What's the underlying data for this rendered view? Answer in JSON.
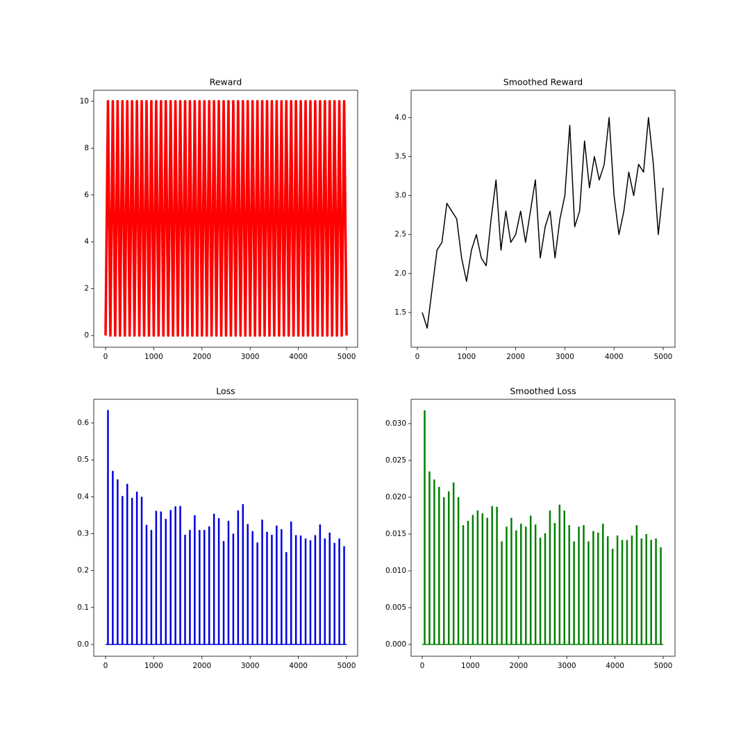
{
  "chart_data": [
    {
      "type": "line",
      "title": "Reward",
      "color": "#ff0000",
      "x": [
        0,
        50,
        100,
        150,
        200,
        250,
        300,
        350,
        400,
        450,
        500,
        550,
        600,
        650,
        700,
        750,
        800,
        850,
        900,
        950,
        1000,
        1050,
        1100,
        1150,
        1200,
        1250,
        1300,
        1350,
        1400,
        1450,
        1500,
        1550,
        1600,
        1650,
        1700,
        1750,
        1800,
        1850,
        1900,
        1950,
        2000,
        2050,
        2100,
        2150,
        2200,
        2250,
        2300,
        2350,
        2400,
        2450,
        2500,
        2550,
        2600,
        2650,
        2700,
        2750,
        2800,
        2850,
        2900,
        2950,
        3000,
        3050,
        3100,
        3150,
        3200,
        3250,
        3300,
        3350,
        3400,
        3450,
        3500,
        3550,
        3600,
        3650,
        3700,
        3750,
        3800,
        3850,
        3900,
        3950,
        4000,
        4050,
        4100,
        4150,
        4200,
        4250,
        4300,
        4350,
        4400,
        4450,
        4500,
        4550,
        4600,
        4650,
        4700,
        4750,
        4800,
        4850,
        4900,
        4950,
        5000
      ],
      "values": [
        0,
        10,
        0,
        10,
        0,
        10,
        0,
        10,
        0,
        10,
        0,
        10,
        0,
        10,
        0,
        10,
        0,
        10,
        0,
        10,
        0,
        10,
        0,
        10,
        0,
        10,
        0,
        10,
        0,
        10,
        0,
        10,
        0,
        10,
        0,
        10,
        0,
        10,
        0,
        10,
        0,
        10,
        0,
        10,
        0,
        10,
        0,
        10,
        0,
        10,
        0,
        10,
        0,
        10,
        0,
        10,
        0,
        10,
        0,
        10,
        0,
        10,
        0,
        10,
        0,
        10,
        0,
        10,
        0,
        10,
        0,
        10,
        0,
        10,
        0,
        10,
        0,
        10,
        0,
        10,
        0,
        10,
        0,
        10,
        0,
        10,
        0,
        10,
        0,
        10,
        0,
        10,
        0,
        10,
        0,
        10,
        0,
        10,
        0,
        10,
        0
      ],
      "xlim": [
        -245,
        5230
      ],
      "ylim": [
        -0.5,
        10.47
      ],
      "xticks": [
        0,
        1000,
        2000,
        3000,
        4000,
        5000
      ],
      "yticks": [
        0,
        2,
        4,
        6,
        8,
        10
      ]
    },
    {
      "type": "line",
      "title": "Smoothed Reward",
      "color": "#000000",
      "x": [
        100,
        200,
        300,
        400,
        500,
        600,
        700,
        800,
        900,
        1000,
        1100,
        1200,
        1300,
        1400,
        1500,
        1600,
        1700,
        1800,
        1900,
        2000,
        2100,
        2200,
        2300,
        2400,
        2500,
        2600,
        2700,
        2800,
        2900,
        3000,
        3100,
        3200,
        3300,
        3400,
        3500,
        3600,
        3700,
        3800,
        3900,
        4000,
        4100,
        4200,
        4300,
        4400,
        4500,
        4600,
        4700,
        4800,
        4900,
        5000
      ],
      "values": [
        1.5,
        1.3,
        1.8,
        2.3,
        2.4,
        2.9,
        2.8,
        2.7,
        2.2,
        1.9,
        2.3,
        2.5,
        2.2,
        2.1,
        2.7,
        3.2,
        2.3,
        2.8,
        2.4,
        2.5,
        2.8,
        2.4,
        2.8,
        3.2,
        2.2,
        2.6,
        2.8,
        2.2,
        2.7,
        3.0,
        3.9,
        2.6,
        2.8,
        3.7,
        3.1,
        3.5,
        3.2,
        3.4,
        4.0,
        3.0,
        2.5,
        2.8,
        3.3,
        3.0,
        3.4,
        3.3,
        4.0,
        3.4,
        2.5,
        3.1
      ],
      "xlim": [
        -127,
        5240
      ],
      "ylim": [
        1.055,
        4.35
      ],
      "xticks": [
        0,
        1000,
        2000,
        3000,
        4000,
        5000
      ],
      "yticks": [
        1.5,
        {
          "value": 2,
          "label": "2.0"
        },
        2.5,
        {
          "value": 3,
          "label": "3.0"
        },
        3.5,
        {
          "value": 4,
          "label": "4.0"
        }
      ]
    },
    {
      "type": "bar",
      "title": "Loss",
      "color": "#0000dd",
      "x": [
        50,
        150,
        250,
        350,
        450,
        550,
        650,
        750,
        850,
        950,
        1050,
        1150,
        1250,
        1350,
        1450,
        1550,
        1650,
        1750,
        1850,
        1950,
        2050,
        2150,
        2250,
        2350,
        2450,
        2550,
        2650,
        2750,
        2850,
        2950,
        3050,
        3150,
        3250,
        3350,
        3450,
        3550,
        3650,
        3750,
        3850,
        3950,
        4050,
        4150,
        4250,
        4350,
        4450,
        4550,
        4650,
        4750,
        4850,
        4950
      ],
      "values": [
        0.635,
        0.47,
        0.447,
        0.402,
        0.435,
        0.397,
        0.414,
        0.4,
        0.324,
        0.31,
        0.362,
        0.36,
        0.34,
        0.364,
        0.374,
        0.375,
        0.297,
        0.31,
        0.35,
        0.31,
        0.31,
        0.32,
        0.354,
        0.342,
        0.28,
        0.335,
        0.3,
        0.363,
        0.38,
        0.326,
        0.307,
        0.276,
        0.338,
        0.305,
        0.297,
        0.322,
        0.312,
        0.25,
        0.333,
        0.296,
        0.295,
        0.287,
        0.282,
        0.296,
        0.325,
        0.287,
        0.303,
        0.275,
        0.287,
        0.266
      ],
      "xlim": [
        -245,
        5230
      ],
      "ylim": [
        -0.032,
        0.664
      ],
      "xticks": [
        0,
        1000,
        2000,
        3000,
        4000,
        5000
      ],
      "yticks": [
        {
          "value": 0,
          "label": "0.0"
        },
        0.1,
        0.2,
        0.3,
        0.4,
        0.5,
        0.6
      ]
    },
    {
      "type": "bar",
      "title": "Smoothed Loss",
      "color": "#008000",
      "x": [
        50,
        150,
        250,
        350,
        450,
        550,
        650,
        750,
        850,
        950,
        1050,
        1150,
        1250,
        1350,
        1450,
        1550,
        1650,
        1750,
        1850,
        1950,
        2050,
        2150,
        2250,
        2350,
        2450,
        2550,
        2650,
        2750,
        2850,
        2950,
        3050,
        3150,
        3250,
        3350,
        3450,
        3550,
        3650,
        3750,
        3850,
        3950,
        4050,
        4150,
        4250,
        4350,
        4450,
        4550,
        4650,
        4750,
        4850,
        4950
      ],
      "values": [
        0.0318,
        0.0235,
        0.0224,
        0.0214,
        0.02,
        0.0208,
        0.022,
        0.02,
        0.0162,
        0.0168,
        0.0176,
        0.0182,
        0.0178,
        0.0172,
        0.0188,
        0.0187,
        0.014,
        0.016,
        0.0172,
        0.0155,
        0.0164,
        0.016,
        0.0175,
        0.0163,
        0.0145,
        0.0151,
        0.0182,
        0.0165,
        0.019,
        0.0182,
        0.0162,
        0.014,
        0.016,
        0.0162,
        0.014,
        0.0154,
        0.0152,
        0.0164,
        0.0147,
        0.013,
        0.0148,
        0.0142,
        0.0142,
        0.0148,
        0.0162,
        0.0144,
        0.015,
        0.0142,
        0.0144,
        0.0132
      ],
      "xlim": [
        -231,
        5245
      ],
      "ylim": [
        -0.0016,
        0.0333
      ],
      "xticks": [
        0,
        1000,
        2000,
        3000,
        4000,
        5000
      ],
      "yticks": [
        {
          "value": 0,
          "label": "0.000"
        },
        0.005,
        {
          "value": 0.01,
          "label": "0.010"
        },
        0.015,
        {
          "value": 0.02,
          "label": "0.020"
        },
        0.025,
        {
          "value": 0.03,
          "label": "0.030"
        }
      ]
    }
  ]
}
